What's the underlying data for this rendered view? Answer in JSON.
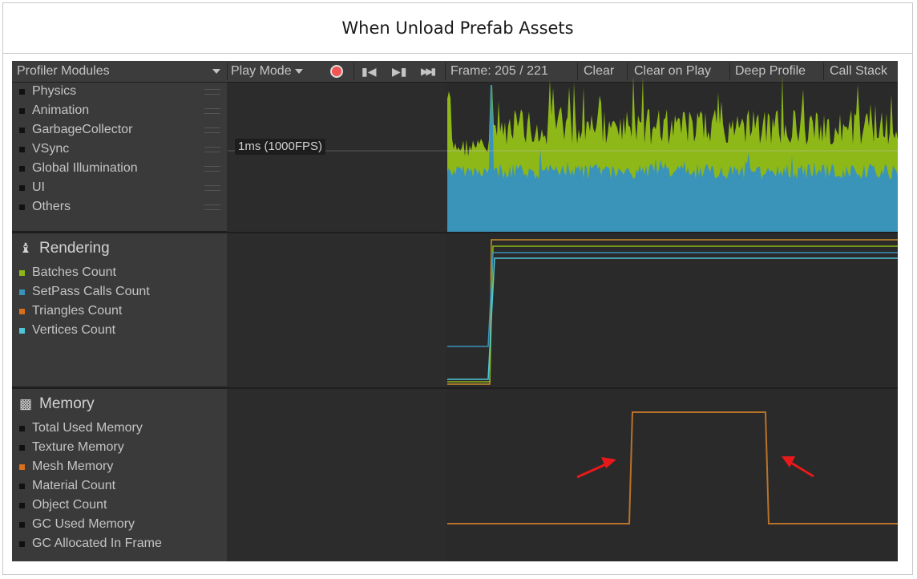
{
  "caption": "When Unload Prefab Assets",
  "toolbar": {
    "modules_dropdown": "Profiler Modules",
    "play_mode": "Play Mode",
    "frame": "Frame: 205 / 221",
    "clear": "Clear",
    "clear_on_play": "Clear on Play",
    "deep_profile": "Deep Profile",
    "call_stack": "Call Stack"
  },
  "cpu_module": {
    "items": [
      "Physics",
      "Animation",
      "GarbageCollector",
      "VSync",
      "Global Illumination",
      "UI",
      "Others"
    ],
    "fps_label": "1ms (1000FPS)"
  },
  "rendering_module": {
    "title": "Rendering",
    "items": [
      {
        "label": "Batches Count",
        "color": "#8db818"
      },
      {
        "label": "SetPass Calls Count",
        "color": "#3a93b9"
      },
      {
        "label": "Triangles Count",
        "color": "#d86f1a"
      },
      {
        "label": "Vertices Count",
        "color": "#4fc6d8"
      }
    ]
  },
  "memory_module": {
    "title": "Memory",
    "items": [
      {
        "label": "Total Used Memory",
        "color": "#111111"
      },
      {
        "label": "Texture Memory",
        "color": "#111111"
      },
      {
        "label": "Mesh Memory",
        "color": "#d86f1a"
      },
      {
        "label": "Material Count",
        "color": "#111111"
      },
      {
        "label": "Object Count",
        "color": "#111111"
      },
      {
        "label": "GC Used Memory",
        "color": "#111111"
      },
      {
        "label": "GC Allocated In Frame",
        "color": "#111111"
      }
    ]
  },
  "colors": {
    "cpu_green": "#8db818",
    "cpu_blue": "#3a93b9",
    "mesh_orange": "#b8732a",
    "annotation_red": "#e8191b"
  }
}
